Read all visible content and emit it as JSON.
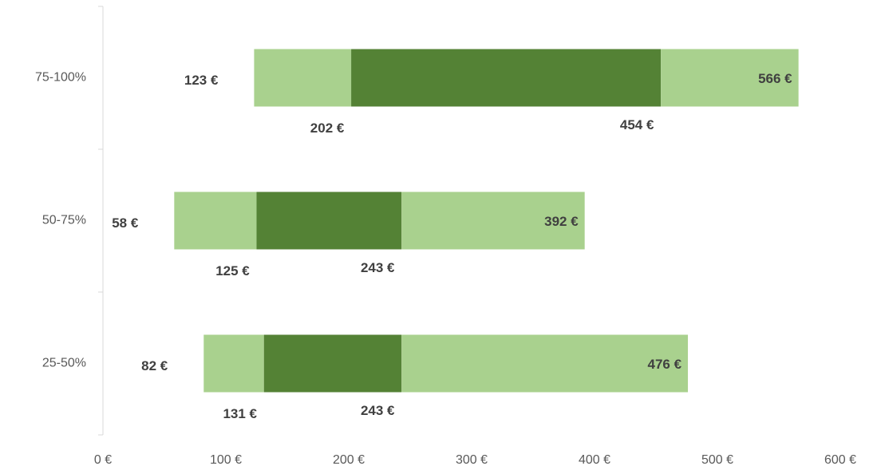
{
  "chart_data": {
    "type": "box",
    "categories": [
      "75-100%",
      "50-75%",
      "25-50%"
    ],
    "boxes": [
      {
        "min": 123,
        "q1": 202,
        "q3": 454,
        "max": 566
      },
      {
        "min": 58,
        "q1": 125,
        "q3": 243,
        "max": 392
      },
      {
        "min": 82,
        "q1": 131,
        "q3": 243,
        "max": 476
      }
    ],
    "value_labels": [
      {
        "min": "123 €",
        "q1": "202 €",
        "q3": "454 €",
        "max": "566 €"
      },
      {
        "min": "58 €",
        "q1": "125 €",
        "q3": "243 €",
        "max": "392 €"
      },
      {
        "min": "82 €",
        "q1": "131 €",
        "q3": "243 €",
        "max": "476 €"
      }
    ],
    "colors": {
      "outer": "#a9d18e",
      "inner": "#548235"
    },
    "xlim": [
      0,
      600
    ],
    "xticks": [
      {
        "value": 0,
        "label": "0 €"
      },
      {
        "value": 100,
        "label": "100 €"
      },
      {
        "value": 200,
        "label": "200 €"
      },
      {
        "value": 300,
        "label": "300 €"
      },
      {
        "value": 400,
        "label": "400 €"
      },
      {
        "value": 500,
        "label": "500 €"
      },
      {
        "value": 600,
        "label": "600 €"
      }
    ],
    "grid": false
  }
}
